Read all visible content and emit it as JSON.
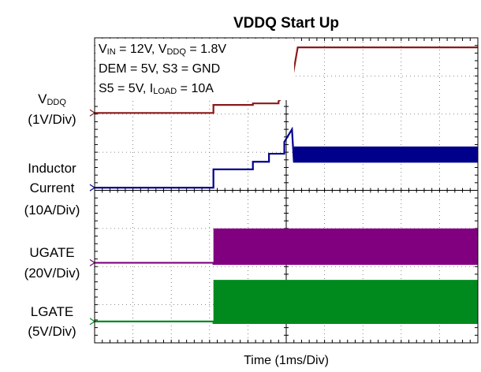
{
  "chart_data": {
    "type": "line",
    "title": "VDDQ Start Up",
    "xlabel": "Time (1ms/Div)",
    "xlim": [
      0,
      10
    ],
    "ylim": [
      0,
      8
    ],
    "xticks": [
      0,
      1,
      2,
      3,
      4,
      5,
      6,
      7,
      8,
      9,
      10
    ],
    "yticks": [
      0,
      1,
      2,
      3,
      4,
      5,
      6,
      7,
      8
    ],
    "grid": true,
    "annotations": [
      [
        {
          "text": "V"
        },
        {
          "text": "IN",
          "sub": true
        },
        {
          "text": " = 12V, V"
        },
        {
          "text": "DDQ",
          "sub": true
        },
        {
          "text": " = 1.8V"
        }
      ],
      [
        {
          "text": "DEM = 5V, S3 = GND"
        }
      ],
      [
        {
          "text": "S5 = 5V, I"
        },
        {
          "text": "LOAD",
          "sub": true
        },
        {
          "text": " = 10A"
        }
      ]
    ],
    "trace_labels": [
      [
        {
          "text": "V"
        },
        {
          "text": "DDQ",
          "sub": true
        }
      ],
      [
        {
          "text": "(1V/Div)"
        }
      ],
      [
        {
          "text": "Inductor"
        }
      ],
      [
        {
          "text": "Current"
        }
      ],
      [
        {
          "text": "(10A/Div)"
        }
      ],
      [
        {
          "text": "UGATE"
        }
      ],
      [
        {
          "text": "(20V/Div)"
        }
      ],
      [
        {
          "text": "LGATE"
        }
      ],
      [
        {
          "text": "(5V/Div)"
        }
      ]
    ],
    "series": [
      {
        "name": "VDDQ",
        "color": "#8b1a1a",
        "x": [
          0,
          3.1,
          3.1,
          4.13,
          4.13,
          4.8,
          4.8,
          5.0,
          5.1,
          5.3,
          10
        ],
        "values": [
          6.03,
          6.03,
          6.24,
          6.24,
          6.28,
          6.28,
          6.34,
          6.5,
          6.6,
          7.75,
          7.75
        ]
      },
      {
        "name": "Inductor Current",
        "color": "#00008b",
        "x": [
          0,
          3.1,
          3.1,
          4.13,
          4.13,
          4.55,
          4.55,
          4.95,
          4.95,
          5.15,
          5.2,
          10
        ],
        "values": [
          4.07,
          4.07,
          4.55,
          4.55,
          4.75,
          4.75,
          4.96,
          4.96,
          5.27,
          5.6,
          4.75,
          4.75
        ],
        "upper": [
          null,
          null,
          null,
          null,
          null,
          null,
          null,
          null,
          null,
          null,
          5.15,
          5.15
        ]
      },
      {
        "name": "UGATE",
        "color": "#800080",
        "x": [
          0,
          3.1,
          3.1,
          10
        ],
        "values": [
          2.1,
          2.1,
          2.07,
          2.07
        ],
        "upper": [
          null,
          null,
          3.0,
          3.0
        ]
      },
      {
        "name": "LGATE",
        "color": "#008a1e",
        "x": [
          0,
          3.1,
          3.1,
          10
        ],
        "values": [
          0.56,
          0.56,
          0.52,
          0.52
        ],
        "upper": [
          null,
          null,
          1.65,
          1.65
        ]
      }
    ]
  }
}
